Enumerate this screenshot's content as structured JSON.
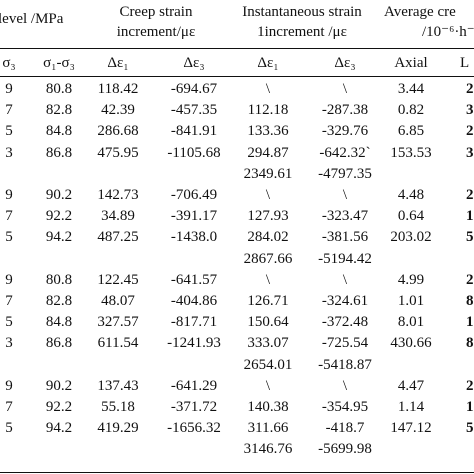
{
  "headers": {
    "stress_level": "level /MPa",
    "creep_strain": [
      "Creep strain",
      "increment/με"
    ],
    "instantaneous_strain": [
      "Instantaneous strain",
      "1increment /με"
    ],
    "average_creep": [
      "Average cre",
      "/10⁻⁶·h⁻"
    ]
  },
  "subheaders": [
    "σ₃",
    "σ₁-σ₃",
    "Δε₁",
    "Δε₃",
    "Δε₁",
    "Δε₃",
    "Axial",
    "L"
  ],
  "rows": [
    [
      "9",
      "80.8",
      "118.42",
      "-694.67",
      "\\",
      "\\",
      "3.44",
      "2"
    ],
    [
      "7",
      "82.8",
      "42.39",
      "-457.35",
      "112.18",
      "-287.38",
      "0.82",
      "3"
    ],
    [
      "5",
      "84.8",
      "286.68",
      "-841.91",
      "133.36",
      "-329.76",
      "6.85",
      "2"
    ],
    [
      "3",
      "86.8",
      "475.95",
      "-1105.68",
      "294.87",
      "-642.32`",
      "153.53",
      "3"
    ],
    [
      "",
      "",
      "",
      "",
      "2349.61",
      "-4797.35",
      "",
      ""
    ],
    [
      "9",
      "90.2",
      "142.73",
      "-706.49",
      "\\",
      "\\",
      "4.48",
      "2"
    ],
    [
      "7",
      "92.2",
      "34.89",
      "-391.17",
      "127.93",
      "-323.47",
      "0.64",
      "1"
    ],
    [
      "5",
      "94.2",
      "487.25",
      "-1438.0",
      "284.02",
      "-381.56",
      "203.02",
      "5"
    ],
    [
      "",
      "",
      "",
      "",
      "2867.66",
      "-5194.42",
      "",
      ""
    ],
    [
      "9",
      "80.8",
      "122.45",
      "-641.57",
      "\\",
      "\\",
      "4.99",
      "2"
    ],
    [
      "7",
      "82.8",
      "48.07",
      "-404.86",
      "126.71",
      "-324.61",
      "1.01",
      "8"
    ],
    [
      "5",
      "84.8",
      "327.57",
      "-817.71",
      "150.64",
      "-372.48",
      "8.01",
      "1"
    ],
    [
      "3",
      "86.8",
      "611.54",
      "-1241.93",
      "333.07",
      "-725.54",
      "430.66",
      "8"
    ],
    [
      "",
      "",
      "",
      "",
      "2654.01",
      "-5418.87",
      "",
      ""
    ],
    [
      "9",
      "90.2",
      "137.43",
      "-641.29",
      "\\",
      "\\",
      "4.47",
      "2"
    ],
    [
      "7",
      "92.2",
      "55.18",
      "-371.72",
      "140.38",
      "-354.95",
      "1.14",
      "1"
    ],
    [
      "5",
      "94.2",
      "419.29",
      "-1656.32",
      "311.66",
      "-418.7",
      "147.12",
      "5"
    ],
    [
      "",
      "",
      "",
      "",
      "3146.76",
      "-5699.98",
      "",
      ""
    ]
  ]
}
